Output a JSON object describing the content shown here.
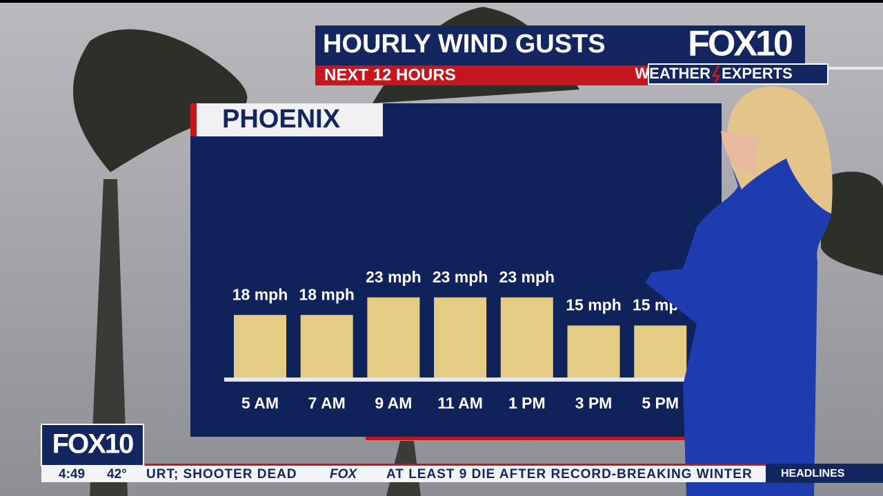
{
  "chart_data": {
    "type": "bar",
    "title": "HOURLY WIND GUSTS",
    "subtitle": "NEXT 12 HOURS",
    "location": "PHOENIX",
    "categories": [
      "5 AM",
      "7 AM",
      "9 AM",
      "11 AM",
      "1 PM",
      "3 PM",
      "5 PM"
    ],
    "values": [
      18,
      18,
      23,
      23,
      23,
      15,
      15
    ],
    "value_labels": [
      "18 mph",
      "18 mph",
      "23 mph",
      "23 mph",
      "23 mph",
      "15 mph",
      "15 mph"
    ],
    "color": "#e5cc84"
  },
  "branding": {
    "logo": "FOX10",
    "weather": "WEATHER",
    "experts": "EXPERTS"
  },
  "ticker": {
    "logo": "FOX10",
    "time": "4:49",
    "temperature": "42°",
    "headline_end": "URT; SHOOTER DEAD",
    "network": "FOX",
    "headline": "AT LEAST 9 DIE AFTER RECORD-BREAKING WINTER",
    "section": "HEADLINES"
  }
}
